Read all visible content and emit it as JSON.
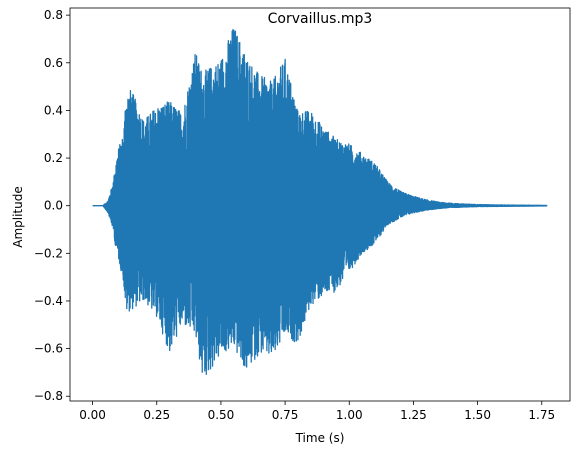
{
  "chart_data": {
    "type": "line",
    "title": "Corvaillus.mp3",
    "xlabel": "Time (s)",
    "ylabel": "Amplitude",
    "xlim": [
      -0.088,
      1.86
    ],
    "ylim": [
      -0.82,
      0.83
    ],
    "x_ticks": [
      0.0,
      0.25,
      0.5,
      0.75,
      1.0,
      1.25,
      1.5,
      1.75
    ],
    "x_tick_labels": [
      "0.00",
      "0.25",
      "0.50",
      "0.75",
      "1.00",
      "1.25",
      "1.50",
      "1.75"
    ],
    "y_ticks": [
      -0.8,
      -0.6,
      -0.4,
      -0.2,
      0.0,
      0.2,
      0.4,
      0.6,
      0.8
    ],
    "y_tick_labels": [
      "−0.8",
      "−0.6",
      "−0.4",
      "−0.2",
      "0.0",
      "0.2",
      "0.4",
      "0.6",
      "0.8"
    ],
    "grid": false,
    "series": [
      {
        "color": "#1f77b4",
        "envelope_time": [
          0.0,
          0.04,
          0.06,
          0.08,
          0.09,
          0.1,
          0.12,
          0.13,
          0.15,
          0.2,
          0.25,
          0.3,
          0.35,
          0.4,
          0.43,
          0.5,
          0.55,
          0.6,
          0.65,
          0.7,
          0.75,
          0.8,
          0.85,
          0.9,
          0.95,
          1.0,
          1.05,
          1.1,
          1.15,
          1.2,
          1.25,
          1.3,
          1.35,
          1.4,
          1.5,
          1.6,
          1.7,
          1.77
        ],
        "envelope_max": [
          0.0,
          0.0,
          0.02,
          0.1,
          0.18,
          0.24,
          0.3,
          0.48,
          0.49,
          0.36,
          0.42,
          0.44,
          0.39,
          0.65,
          0.56,
          0.62,
          0.76,
          0.63,
          0.55,
          0.52,
          0.62,
          0.4,
          0.4,
          0.33,
          0.28,
          0.26,
          0.22,
          0.18,
          0.1,
          0.06,
          0.04,
          0.025,
          0.015,
          0.01,
          0.005,
          0.003,
          0.002,
          0.001
        ],
        "envelope_min": [
          0.0,
          0.0,
          -0.03,
          -0.1,
          -0.18,
          -0.22,
          -0.32,
          -0.45,
          -0.44,
          -0.4,
          -0.47,
          -0.62,
          -0.5,
          -0.55,
          -0.74,
          -0.63,
          -0.6,
          -0.7,
          -0.62,
          -0.65,
          -0.55,
          -0.58,
          -0.42,
          -0.38,
          -0.36,
          -0.28,
          -0.2,
          -0.16,
          -0.08,
          -0.05,
          -0.03,
          -0.02,
          -0.012,
          -0.008,
          -0.004,
          -0.003,
          -0.002,
          -0.001
        ]
      }
    ]
  }
}
